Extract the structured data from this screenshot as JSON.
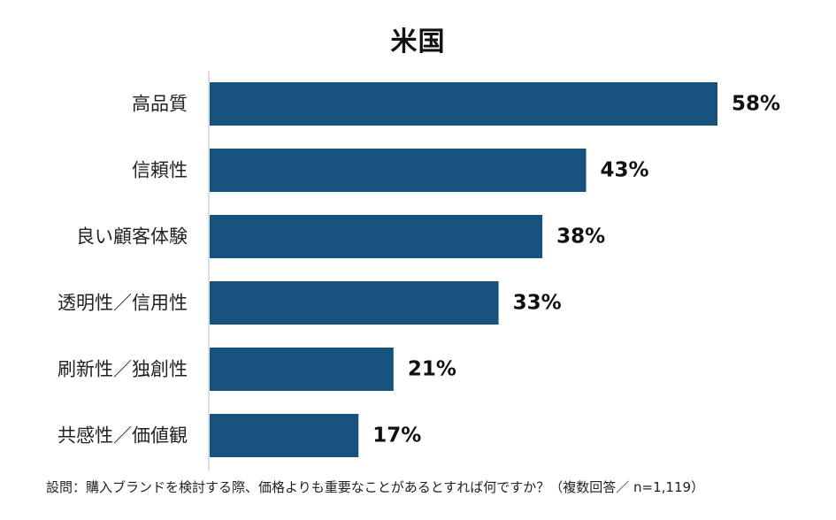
{
  "chart_data": {
    "type": "bar",
    "orientation": "horizontal",
    "title": "米国",
    "categories": [
      "高品質",
      "信頼性",
      "良い顧客体験",
      "透明性／信用性",
      "刷新性／独創性",
      "共感性／価値観"
    ],
    "values": [
      58,
      43,
      38,
      33,
      21,
      17
    ],
    "value_labels": [
      "58%",
      "43%",
      "38%",
      "33%",
      "21%",
      "17%"
    ],
    "unit": "%",
    "xlim": [
      0,
      60
    ],
    "grid": false,
    "bar_color": "#17517e",
    "footnote": "設問：購入ブランドを検討する際、価格よりも重要なことがあるとすれば何ですか？（複数回答／ n=1,119）"
  }
}
